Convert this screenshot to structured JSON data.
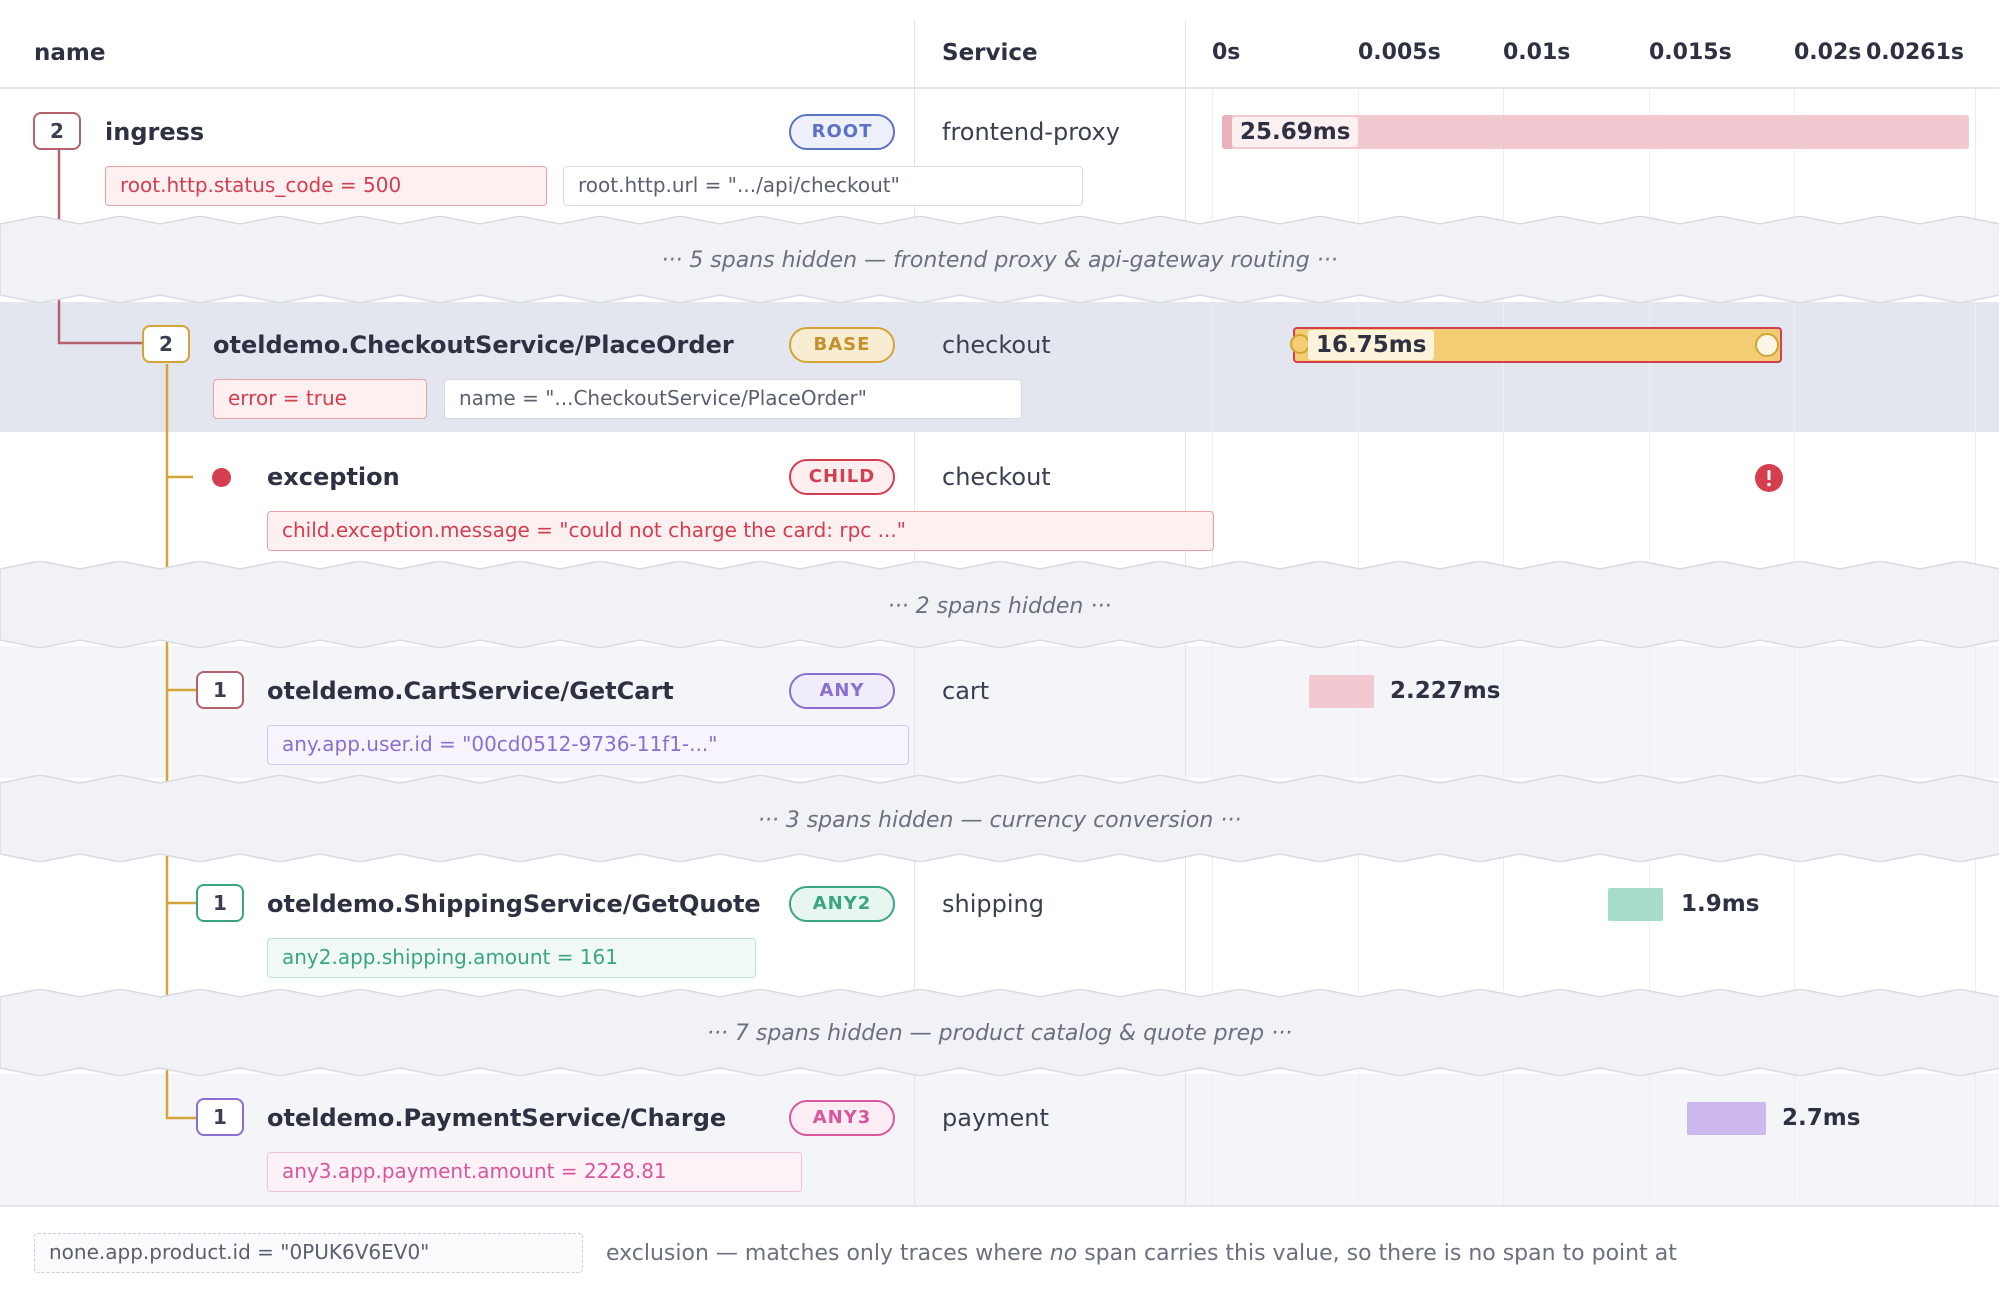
{
  "columns": {
    "name": "name",
    "service": "Service"
  },
  "timeline": {
    "ticks": [
      "0s",
      "0.005s",
      "0.01s",
      "0.015s",
      "0.02s",
      "0.0261s"
    ]
  },
  "spans": {
    "ingress": {
      "count": "2",
      "name": "ingress",
      "role": "ROOT",
      "service": "frontend-proxy",
      "duration": "25.69ms",
      "attrs": [
        "root.http.status_code = 500",
        "root.http.url = \".../api/checkout\""
      ]
    },
    "checkout": {
      "count": "2",
      "name": "oteldemo.CheckoutService/PlaceOrder",
      "role": "BASE",
      "service": "checkout",
      "duration": "16.75ms",
      "attrs": [
        "error = true",
        "name = \"...CheckoutService/PlaceOrder\""
      ]
    },
    "exception": {
      "name": "exception",
      "role": "CHILD",
      "service": "checkout",
      "attrs": [
        "child.exception.message = \"could not charge the card: rpc ...\""
      ]
    },
    "cart": {
      "count": "1",
      "name": "oteldemo.CartService/GetCart",
      "role": "ANY",
      "service": "cart",
      "duration": "2.227ms",
      "attrs": [
        "any.app.user.id = \"00cd0512-9736-11f1-...\""
      ]
    },
    "shipping": {
      "count": "1",
      "name": "oteldemo.ShippingService/GetQuote",
      "role": "ANY2",
      "service": "shipping",
      "duration": "1.9ms",
      "attrs": [
        "any2.app.shipping.amount = 161"
      ]
    },
    "payment": {
      "count": "1",
      "name": "oteldemo.PaymentService/Charge",
      "role": "ANY3",
      "service": "payment",
      "duration": "2.7ms",
      "attrs": [
        "any3.app.payment.amount = 2228.81"
      ]
    }
  },
  "hidden": [
    "···  5 spans hidden — frontend proxy & api-gateway routing  ···",
    "···  2 spans hidden  ···",
    "···  3 spans hidden — currency conversion  ···",
    "···  7 spans hidden — product catalog & quote prep  ···"
  ],
  "footer": {
    "attr": "none.app.product.id = \"0PUK6V6EV0\"",
    "note_pre": "exclusion — matches only traces where ",
    "note_em": "no",
    "note_post": " span carries this value, so there is no span to point at"
  },
  "colors": {
    "root": "#d06b7c",
    "base": "#d4a436",
    "child": "#d43e4e",
    "any": "#8a6fd1",
    "any2": "#3aa583",
    "any3": "#d9569c",
    "root_role": "#5a73c4"
  }
}
